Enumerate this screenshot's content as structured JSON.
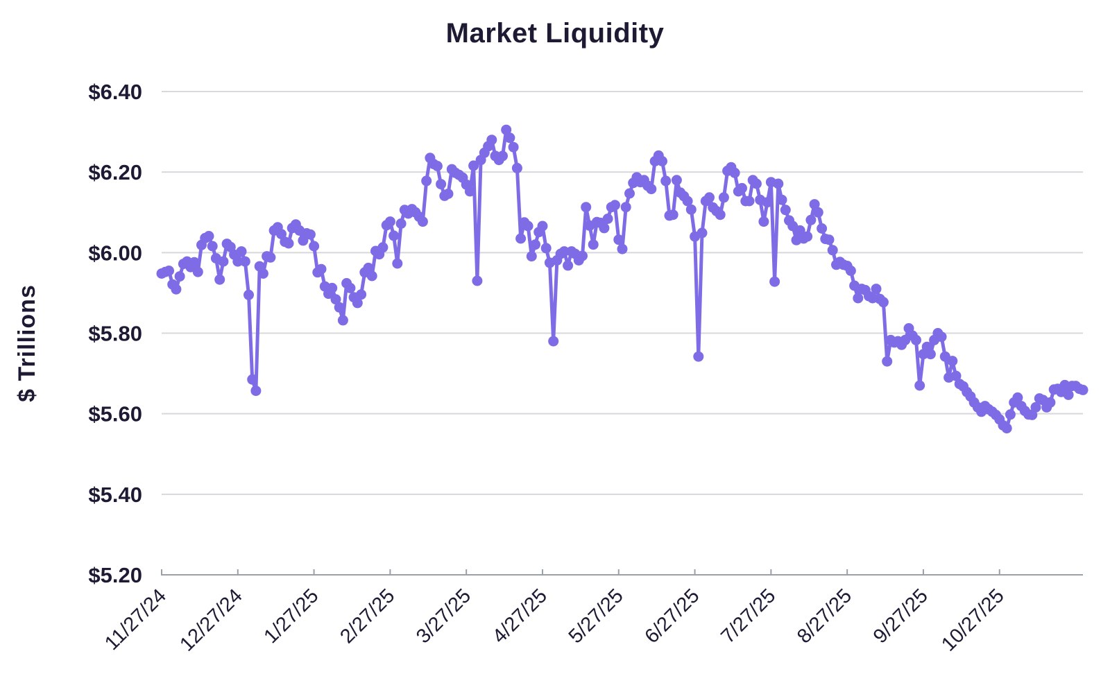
{
  "page": {
    "background": "#ffffff"
  },
  "chart_data": {
    "type": "line",
    "title": "Market Liquidity",
    "xlabel": "",
    "ylabel": "$ Trillions",
    "legend": "none",
    "grid": true,
    "line_color": "#7e6ce6",
    "marker_color": "#7e6ce6",
    "grid_color": "#d6d8dc",
    "axis_color": "#9aa0a8",
    "text_color": "#1d1a33",
    "ylim": [
      5.2,
      6.4
    ],
    "y_ticks": [
      "$6.40",
      "$6.20",
      "$6.00",
      "$5.80",
      "$5.60",
      "$5.40",
      "$5.20"
    ],
    "y_tick_values": [
      6.4,
      6.2,
      6.0,
      5.8,
      5.6,
      5.4,
      5.2
    ],
    "x_tick_labels": [
      "11/27/24",
      "12/27/24",
      "1/27/25",
      "2/27/25",
      "3/27/25",
      "4/27/25",
      "5/27/25",
      "6/27/25",
      "7/27/25",
      "8/27/25",
      "9/27/25",
      "10/27/25"
    ],
    "x_tick_indices": [
      0,
      21,
      42,
      63,
      84,
      105,
      126,
      147,
      168,
      189,
      210,
      231
    ],
    "units": "USD trillions",
    "values": [
      5.948,
      5.952,
      5.955,
      5.921,
      5.909,
      5.941,
      5.972,
      5.978,
      5.964,
      5.976,
      5.952,
      6.019,
      6.036,
      6.041,
      6.016,
      5.986,
      5.933,
      5.978,
      6.022,
      6.014,
      5.995,
      5.978,
      6.003,
      5.978,
      5.895,
      5.685,
      5.657,
      5.966,
      5.948,
      5.991,
      5.988,
      6.055,
      6.063,
      6.046,
      6.027,
      6.023,
      6.061,
      6.07,
      6.055,
      6.03,
      6.048,
      6.045,
      6.016,
      5.951,
      5.959,
      5.916,
      5.898,
      5.912,
      5.884,
      5.864,
      5.832,
      5.924,
      5.912,
      5.889,
      5.875,
      5.896,
      5.951,
      5.962,
      5.942,
      6.004,
      5.996,
      6.013,
      6.068,
      6.077,
      6.042,
      5.973,
      6.072,
      6.106,
      6.097,
      6.108,
      6.1,
      6.089,
      6.077,
      6.178,
      6.235,
      6.22,
      6.215,
      6.17,
      6.141,
      6.146,
      6.207,
      6.198,
      6.193,
      6.186,
      6.169,
      6.152,
      6.216,
      5.93,
      6.23,
      6.248,
      6.264,
      6.28,
      6.24,
      6.23,
      6.24,
      6.305,
      6.285,
      6.262,
      6.21,
      6.035,
      6.075,
      6.066,
      5.991,
      6.02,
      6.051,
      6.066,
      6.011,
      5.975,
      5.78,
      5.981,
      5.997,
      6.003,
      5.968,
      6.003,
      5.997,
      5.981,
      5.992,
      6.113,
      6.067,
      6.02,
      6.076,
      6.074,
      6.061,
      6.084,
      6.113,
      6.118,
      6.032,
      6.009,
      6.113,
      6.147,
      6.173,
      6.187,
      6.175,
      6.18,
      6.166,
      6.158,
      6.227,
      6.241,
      6.227,
      6.178,
      6.092,
      6.094,
      6.18,
      6.149,
      6.14,
      6.128,
      6.107,
      6.04,
      5.742,
      6.049,
      6.128,
      6.137,
      6.112,
      6.103,
      6.094,
      6.137,
      6.203,
      6.212,
      6.198,
      6.152,
      6.16,
      6.128,
      6.128,
      6.18,
      6.171,
      6.131,
      6.077,
      6.125,
      6.175,
      5.928,
      6.171,
      6.131,
      6.106,
      6.08,
      6.066,
      6.031,
      6.055,
      6.035,
      6.04,
      6.081,
      6.12,
      6.1,
      6.06,
      6.034,
      6.032,
      6.006,
      5.97,
      5.977,
      5.97,
      5.967,
      5.955,
      5.918,
      5.887,
      5.91,
      5.907,
      5.892,
      5.887,
      5.91,
      5.885,
      5.877,
      5.73,
      5.783,
      5.777,
      5.78,
      5.771,
      5.783,
      5.812,
      5.794,
      5.783,
      5.67,
      5.748,
      5.766,
      5.748,
      5.783,
      5.8,
      5.791,
      5.742,
      5.69,
      5.731,
      5.694,
      5.674,
      5.668,
      5.654,
      5.643,
      5.628,
      5.616,
      5.605,
      5.619,
      5.611,
      5.605,
      5.597,
      5.586,
      5.571,
      5.564,
      5.598,
      5.628,
      5.64,
      5.619,
      5.607,
      5.598,
      5.597,
      5.616,
      5.638,
      5.634,
      5.616,
      5.628,
      5.66,
      5.662,
      5.654,
      5.671,
      5.647,
      5.669,
      5.669,
      5.662,
      5.659
    ]
  }
}
